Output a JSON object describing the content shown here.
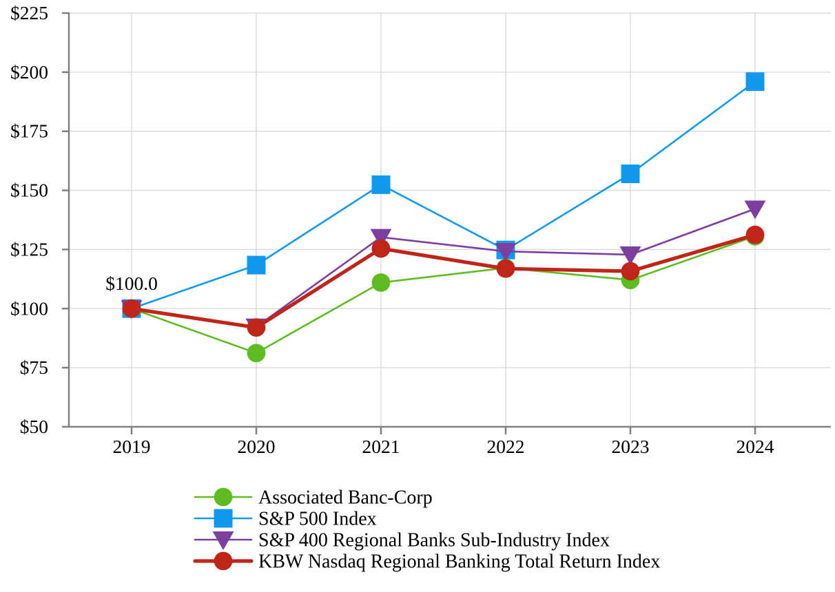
{
  "page": {
    "background_color": "#ffffff",
    "text_color": "#000000"
  },
  "chart_data": {
    "type": "line",
    "title": "",
    "xlabel": "",
    "ylabel": "",
    "categories": [
      "2019",
      "2020",
      "2021",
      "2022",
      "2023",
      "2024"
    ],
    "ylim": [
      50,
      225
    ],
    "y_ticks": [
      {
        "value": 50,
        "label": "$50"
      },
      {
        "value": 75,
        "label": "$75"
      },
      {
        "value": 100,
        "label": "$100"
      },
      {
        "value": 125,
        "label": "$125"
      },
      {
        "value": 150,
        "label": "$150"
      },
      {
        "value": 175,
        "label": "$175"
      },
      {
        "value": 200,
        "label": "$200"
      },
      {
        "value": 225,
        "label": "$225"
      }
    ],
    "grid": {
      "horizontal": true,
      "vertical": true,
      "color": "#d9d9d9"
    },
    "axis_color": "#808080",
    "annotation": {
      "text": "$100.0",
      "year": "2019",
      "year_index": 0,
      "value": 100.0
    },
    "series": [
      {
        "name": "Associated Banc-Corp",
        "color": "#5dbc21",
        "marker": "circle",
        "line_width": 2.6,
        "values": [
          100.0,
          81.2,
          111.0,
          117.2,
          112.1,
          130.6
        ]
      },
      {
        "name": "S&P 500 Index",
        "color": "#0f9af0",
        "marker": "square",
        "line_width": 2.6,
        "values": [
          100.0,
          118.4,
          152.4,
          124.8,
          157.0,
          196.0
        ]
      },
      {
        "name": "S&P 400 Regional Banks Sub-Industry Index",
        "color": "#7d3f9d",
        "marker": "triangle-down",
        "line_width": 2.6,
        "values": [
          100.0,
          92.3,
          130.2,
          124.2,
          122.8,
          142.2
        ]
      },
      {
        "name": "KBW Nasdaq Regional Banking Total Return Index",
        "color": "#bf2619",
        "marker": "circle",
        "line_width": 5.2,
        "values": [
          100.0,
          92.0,
          125.4,
          116.9,
          115.8,
          131.2
        ]
      }
    ],
    "draw_order": [
      1,
      0,
      2,
      3
    ],
    "legend": {
      "position": "bottom-left",
      "entries_follow_series_order": true
    }
  }
}
